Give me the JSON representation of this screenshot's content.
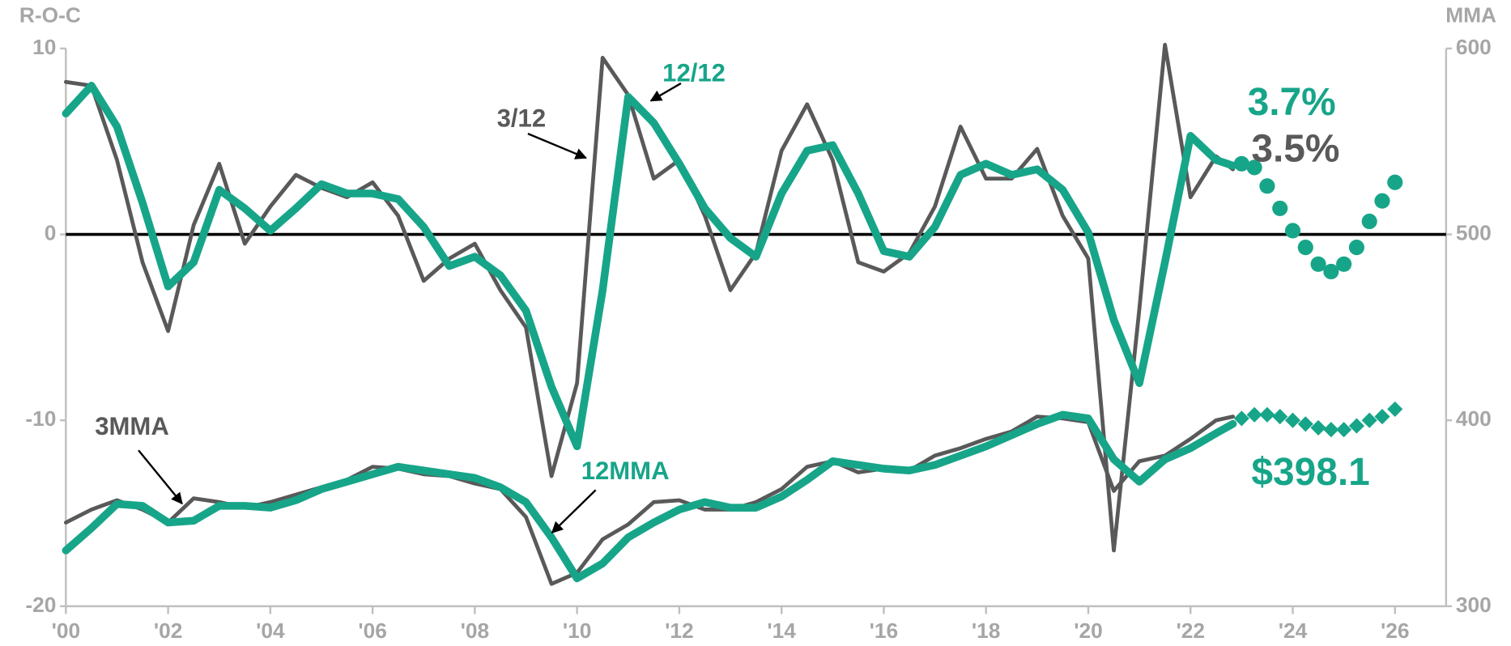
{
  "chart_data": {
    "type": "line",
    "y_label": "R-O-C",
    "y2_label": "MMA",
    "xlim": [
      2000,
      2027
    ],
    "xticks": [
      {
        "value": 2000,
        "label": "'00"
      },
      {
        "value": 2002,
        "label": "'02"
      },
      {
        "value": 2004,
        "label": "'04"
      },
      {
        "value": 2006,
        "label": "'06"
      },
      {
        "value": 2008,
        "label": "'08"
      },
      {
        "value": 2010,
        "label": "'10"
      },
      {
        "value": 2012,
        "label": "'12"
      },
      {
        "value": 2014,
        "label": "'14"
      },
      {
        "value": 2016,
        "label": "'16"
      },
      {
        "value": 2018,
        "label": "'18"
      },
      {
        "value": 2020,
        "label": "'20"
      },
      {
        "value": 2022,
        "label": "'22"
      },
      {
        "value": 2024,
        "label": "'24"
      },
      {
        "value": 2026,
        "label": "'26"
      }
    ],
    "ylim": [
      -20,
      10
    ],
    "yticks": [
      -20,
      -10,
      0,
      10
    ],
    "y2lim": [
      300,
      600
    ],
    "y2ticks": [
      300,
      400,
      500,
      600
    ],
    "zero_line": true,
    "series": [
      {
        "name": "3/12",
        "color": "#595959",
        "width": 4,
        "axis": "y",
        "end_label": "3.5%",
        "x": [
          2000,
          2000.5,
          2001,
          2001.5,
          2002,
          2002.5,
          2003,
          2003.5,
          2004,
          2004.5,
          2005,
          2005.5,
          2006,
          2006.5,
          2007,
          2007.5,
          2008,
          2008.5,
          2009,
          2009.5,
          2010,
          2010.5,
          2011,
          2011.5,
          2012,
          2012.5,
          2013,
          2013.5,
          2014,
          2014.5,
          2015,
          2015.5,
          2016,
          2016.5,
          2017,
          2017.5,
          2018,
          2018.5,
          2019,
          2019.5,
          2020,
          2020.5,
          2021,
          2021.5,
          2022,
          2022.5,
          2022.83
        ],
        "values": [
          8.2,
          8,
          4,
          -1.5,
          -5.2,
          0.5,
          3.8,
          -0.5,
          1.5,
          3.2,
          2.5,
          2,
          2.8,
          1,
          -2.5,
          -1.3,
          -0.5,
          -3,
          -5,
          -13,
          -8,
          9.5,
          7.5,
          3,
          4,
          1,
          -3,
          -1,
          4.5,
          7,
          4,
          -1.5,
          -2,
          -1,
          1.5,
          5.8,
          3,
          3,
          4.6,
          1,
          -1.3,
          -17,
          -4,
          10.2,
          2,
          4.2,
          3.5
        ]
      },
      {
        "name": "3MMA",
        "color": "#595959",
        "width": 4,
        "axis": "y2",
        "x": [
          2000,
          2000.5,
          2001,
          2001.5,
          2002,
          2002.5,
          2003,
          2003.5,
          2004,
          2004.5,
          2005,
          2005.5,
          2006,
          2006.5,
          2007,
          2007.5,
          2008,
          2008.5,
          2009,
          2009.5,
          2010,
          2010.5,
          2011,
          2011.5,
          2012,
          2012.5,
          2013,
          2013.5,
          2014,
          2014.5,
          2015,
          2015.5,
          2016,
          2016.5,
          2017,
          2017.5,
          2018,
          2018.5,
          2019,
          2019.5,
          2020,
          2020.5,
          2021,
          2021.5,
          2022,
          2022.5,
          2022.83
        ],
        "values": [
          345,
          352,
          357,
          352,
          345,
          358,
          356,
          353,
          356,
          360,
          364,
          368,
          375,
          374,
          371,
          370,
          366,
          363,
          348,
          312,
          318,
          336,
          344,
          356,
          357,
          352,
          352,
          356,
          363,
          375,
          378,
          372,
          374,
          373,
          381,
          385,
          390,
          394,
          402,
          401,
          399,
          362,
          378,
          381,
          390,
          400,
          402
        ]
      },
      {
        "name": "12/12",
        "color": "#17a589",
        "width": 8,
        "axis": "y",
        "end_label": "3.7%",
        "x": [
          2000,
          2000.5,
          2001,
          2001.5,
          2002,
          2002.5,
          2003,
          2003.5,
          2004,
          2004.5,
          2005,
          2005.5,
          2006,
          2006.5,
          2007,
          2007.5,
          2008,
          2008.5,
          2009,
          2009.5,
          2010,
          2010.5,
          2011,
          2011.5,
          2012,
          2012.5,
          2013,
          2013.5,
          2014,
          2014.5,
          2015,
          2015.5,
          2016,
          2016.5,
          2017,
          2017.5,
          2018,
          2018.5,
          2019,
          2019.5,
          2020,
          2020.5,
          2021,
          2021.5,
          2022,
          2022.5,
          2022.83
        ],
        "values": [
          6.5,
          8,
          5.8,
          1.7,
          -2.8,
          -1.5,
          2.4,
          1.4,
          0.2,
          1.4,
          2.7,
          2.2,
          2.2,
          1.9,
          0.4,
          -1.7,
          -1.2,
          -2.2,
          -4.1,
          -8.2,
          -11.4,
          -3,
          7.4,
          6,
          3.8,
          1.4,
          -0.2,
          -1.2,
          2.2,
          4.5,
          4.8,
          2.2,
          -0.9,
          -1.2,
          0.4,
          3.2,
          3.8,
          3.2,
          3.5,
          2.4,
          0.1,
          -4.6,
          -8,
          -1.5,
          5.3,
          4,
          3.7
        ]
      },
      {
        "name": "12MMA",
        "color": "#17a589",
        "width": 8,
        "axis": "y2",
        "end_label": "$398.1",
        "x": [
          2000,
          2000.5,
          2001,
          2001.5,
          2002,
          2002.5,
          2003,
          2003.5,
          2004,
          2004.5,
          2005,
          2005.5,
          2006,
          2006.5,
          2007,
          2007.5,
          2008,
          2008.5,
          2009,
          2009.5,
          2010,
          2010.5,
          2011,
          2011.5,
          2012,
          2012.5,
          2013,
          2013.5,
          2014,
          2014.5,
          2015,
          2015.5,
          2016,
          2016.5,
          2017,
          2017.5,
          2018,
          2018.5,
          2019,
          2019.5,
          2020,
          2020.5,
          2021,
          2021.5,
          2022,
          2022.5,
          2022.83
        ],
        "values": [
          330,
          342,
          355,
          354,
          345,
          346,
          354,
          354,
          353,
          357,
          363,
          367,
          371,
          375,
          373,
          371,
          369,
          364,
          356,
          337,
          315,
          323,
          337,
          345,
          352,
          356,
          353,
          353,
          359,
          368,
          378,
          376,
          374,
          373,
          376,
          381,
          386,
          392,
          398,
          403,
          401,
          379,
          367,
          379,
          385,
          393,
          398.1
        ]
      },
      {
        "color": "#17a589",
        "axis": "y",
        "marker": "circle",
        "x": [
          2023,
          2023.25,
          2023.5,
          2023.75,
          2024,
          2024.25,
          2024.5,
          2024.75,
          2025,
          2025.25,
          2025.5,
          2025.75,
          2026
        ],
        "values": [
          3.8,
          3.6,
          2.6,
          1.4,
          0.2,
          -0.7,
          -1.6,
          -2.0,
          -1.6,
          -0.7,
          0.7,
          1.8,
          2.8
        ]
      },
      {
        "color": "#17a589",
        "axis": "y2",
        "marker": "diamond",
        "x": [
          2023,
          2023.25,
          2023.5,
          2023.75,
          2024,
          2024.25,
          2024.5,
          2024.75,
          2025,
          2025.25,
          2025.5,
          2025.75,
          2026
        ],
        "values": [
          401,
          403,
          403,
          402,
          400,
          398,
          396,
          395,
          395,
          397,
          400,
          402,
          406
        ]
      }
    ]
  }
}
